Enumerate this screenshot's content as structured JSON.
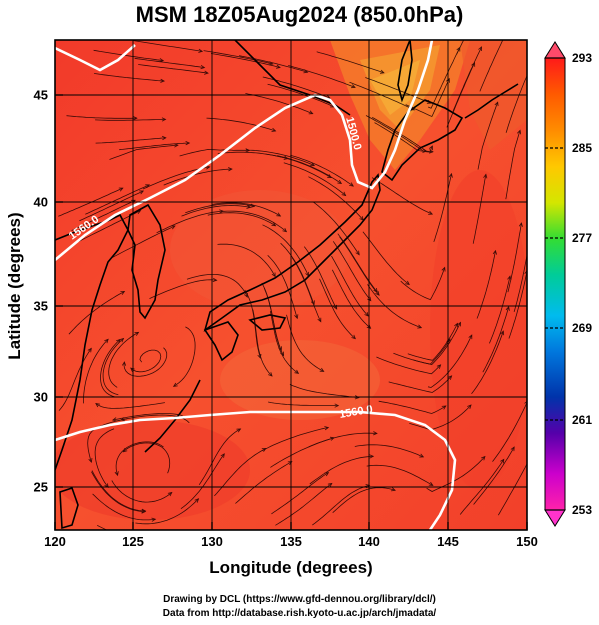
{
  "title": "MSM 18Z05Aug2024 (850.0hPa)",
  "axes": {
    "xlabel": "Longitude (degrees)",
    "ylabel": "Latitude  (degrees)",
    "x_ticks": [
      "120",
      "125",
      "130",
      "135",
      "140",
      "145",
      "150"
    ],
    "y_ticks": [
      "25",
      "30",
      "35",
      "40",
      "45"
    ]
  },
  "colorbar": {
    "ticks": [
      "293",
      "285",
      "277",
      "269",
      "261",
      "253"
    ],
    "colors": [
      "#ff1a1a",
      "#ff5a00",
      "#ff8c00",
      "#ffc800",
      "#d4e600",
      "#33dd33",
      "#00cc99",
      "#00bbee",
      "#0077dd",
      "#0033aa",
      "#5500aa",
      "#cc00cc",
      "#ff22aa"
    ]
  },
  "contours": {
    "labels": [
      "1560.0",
      "1500.0",
      "1560.0"
    ]
  },
  "map": {
    "field": "temperature",
    "units": "K",
    "lon_range": [
      120,
      150
    ],
    "lat_range": [
      23,
      48
    ],
    "background_color": "#f64c2c"
  },
  "credits": {
    "line1": "Drawing by DCL (https://www.gfd-dennou.org/library/dcl/)",
    "line2": "Data from http://database.rish.kyoto-u.ac.jp/arch/jmadata/"
  }
}
